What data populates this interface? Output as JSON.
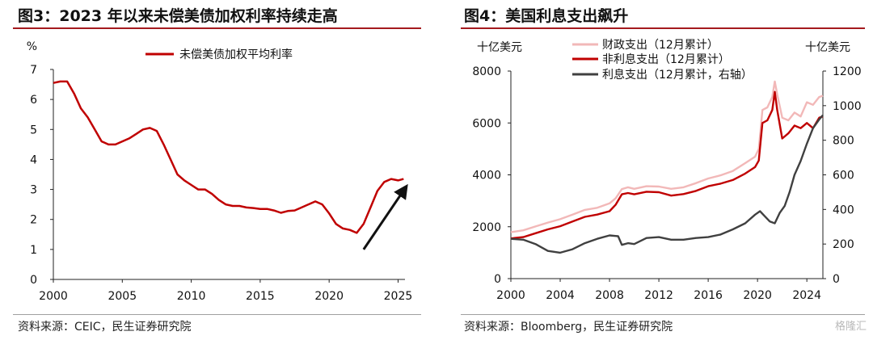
{
  "panels": [
    {
      "title": "图3：2023 年以来未偿美债加权利率持续走高",
      "source": "资料来源：CEIC，民生证券研究院"
    },
    {
      "title": "图4：美国利息支出飙升",
      "source": "资料来源：Bloomberg，民生证券研究院"
    }
  ],
  "watermark": "格隆汇",
  "chart_data": [
    {
      "type": "line",
      "unit_label": "%",
      "xlim": [
        2000,
        2025.5
      ],
      "ylim": [
        0,
        7
      ],
      "xticks": [
        "2000",
        "2005",
        "2010",
        "2015",
        "2020",
        "2025"
      ],
      "yticks": [
        "0",
        "1",
        "2",
        "3",
        "4",
        "5",
        "6",
        "7"
      ],
      "legend_position": "top-center",
      "annotation": "upward arrow from 2022.5 to 2025.6",
      "colors": {
        "series": "#c00000",
        "arrow": "#111111"
      },
      "series": [
        {
          "name": "未偿美债加权平均利率",
          "x": [
            2000,
            2000.5,
            2001,
            2001.5,
            2002,
            2002.5,
            2003,
            2003.5,
            2004,
            2004.5,
            2005,
            2005.5,
            2006,
            2006.5,
            2007,
            2007.5,
            2008,
            2008.5,
            2009,
            2009.5,
            2010,
            2010.5,
            2011,
            2011.5,
            2012,
            2012.5,
            2013,
            2013.5,
            2014,
            2014.5,
            2015,
            2015.5,
            2016,
            2016.5,
            2017,
            2017.5,
            2018,
            2018.5,
            2019,
            2019.5,
            2020,
            2020.5,
            2021,
            2021.5,
            2022,
            2022.5,
            2023,
            2023.5,
            2024,
            2024.5,
            2025,
            2025.4
          ],
          "values": [
            6.55,
            6.6,
            6.6,
            6.2,
            5.7,
            5.4,
            5.0,
            4.6,
            4.5,
            4.5,
            4.6,
            4.7,
            4.85,
            5.0,
            5.05,
            4.95,
            4.5,
            4.0,
            3.5,
            3.3,
            3.15,
            3.0,
            3.0,
            2.85,
            2.65,
            2.5,
            2.45,
            2.45,
            2.4,
            2.38,
            2.35,
            2.35,
            2.3,
            2.22,
            2.28,
            2.3,
            2.4,
            2.5,
            2.6,
            2.5,
            2.2,
            1.85,
            1.7,
            1.65,
            1.55,
            1.85,
            2.4,
            2.95,
            3.25,
            3.35,
            3.3,
            3.35
          ]
        }
      ]
    },
    {
      "type": "line",
      "left_unit_label": "十亿美元",
      "right_unit_label": "十亿美元",
      "xlim": [
        2000,
        2025.3
      ],
      "ylim_left": [
        0,
        8000
      ],
      "ylim_right": [
        0,
        1200
      ],
      "xticks": [
        "2000",
        "2004",
        "2008",
        "2012",
        "2016",
        "2020",
        "2024"
      ],
      "yticks_left": [
        "0",
        "2000",
        "4000",
        "6000",
        "8000"
      ],
      "yticks_right": [
        "0",
        "200",
        "400",
        "600",
        "800",
        "1000",
        "1200"
      ],
      "legend_position": "top-center",
      "series": [
        {
          "name": "财政支出（12月累计）",
          "axis": "left",
          "color": "#f2b8b8",
          "x": [
            2000,
            2001,
            2002,
            2003,
            2004,
            2005,
            2006,
            2007,
            2008,
            2008.5,
            2009,
            2009.5,
            2010,
            2011,
            2012,
            2013,
            2014,
            2015,
            2016,
            2017,
            2018,
            2019,
            2019.8,
            2020.1,
            2020.4,
            2020.8,
            2021.2,
            2021.4,
            2021.6,
            2022,
            2022.5,
            2023,
            2023.5,
            2024,
            2024.5,
            2025,
            2025.3
          ],
          "values": [
            1790,
            1860,
            2010,
            2160,
            2290,
            2470,
            2650,
            2730,
            2900,
            3100,
            3450,
            3520,
            3460,
            3560,
            3550,
            3460,
            3520,
            3680,
            3860,
            3980,
            4150,
            4450,
            4700,
            5000,
            6500,
            6600,
            7000,
            7600,
            7100,
            6200,
            6100,
            6400,
            6250,
            6800,
            6700,
            7000,
            7050
          ]
        },
        {
          "name": "非利息支出（12月累计）",
          "axis": "left",
          "color": "#c00000",
          "x": [
            2000,
            2001,
            2002,
            2003,
            2004,
            2005,
            2006,
            2007,
            2008,
            2008.5,
            2009,
            2009.5,
            2010,
            2011,
            2012,
            2013,
            2014,
            2015,
            2016,
            2017,
            2018,
            2019,
            2019.8,
            2020.1,
            2020.4,
            2020.8,
            2021.2,
            2021.4,
            2021.6,
            2022,
            2022.5,
            2023,
            2023.5,
            2024,
            2024.5,
            2025,
            2025.3
          ],
          "values": [
            1550,
            1600,
            1750,
            1900,
            2020,
            2200,
            2380,
            2470,
            2600,
            2850,
            3250,
            3300,
            3250,
            3350,
            3330,
            3200,
            3260,
            3380,
            3560,
            3660,
            3800,
            4050,
            4300,
            4550,
            6000,
            6100,
            6500,
            7200,
            6500,
            5400,
            5600,
            5900,
            5800,
            6000,
            5800,
            6200,
            6250
          ]
        },
        {
          "name": "利息支出（12月累计，右轴）",
          "axis": "right",
          "color": "#404040",
          "x": [
            2000,
            2001,
            2002,
            2003,
            2004,
            2005,
            2006,
            2007,
            2008,
            2008.7,
            2009,
            2009.5,
            2010,
            2011,
            2012,
            2013,
            2014,
            2015,
            2016,
            2017,
            2018,
            2019,
            2019.8,
            2020.2,
            2020.6,
            2021,
            2021.4,
            2021.8,
            2022.2,
            2022.6,
            2023,
            2023.5,
            2024,
            2024.5,
            2025,
            2025.3
          ],
          "values": [
            230,
            225,
            200,
            160,
            150,
            170,
            205,
            230,
            250,
            245,
            195,
            205,
            200,
            235,
            240,
            225,
            225,
            235,
            240,
            255,
            285,
            320,
            370,
            390,
            360,
            330,
            320,
            380,
            420,
            500,
            600,
            680,
            780,
            870,
            920,
            945
          ]
        }
      ]
    }
  ]
}
